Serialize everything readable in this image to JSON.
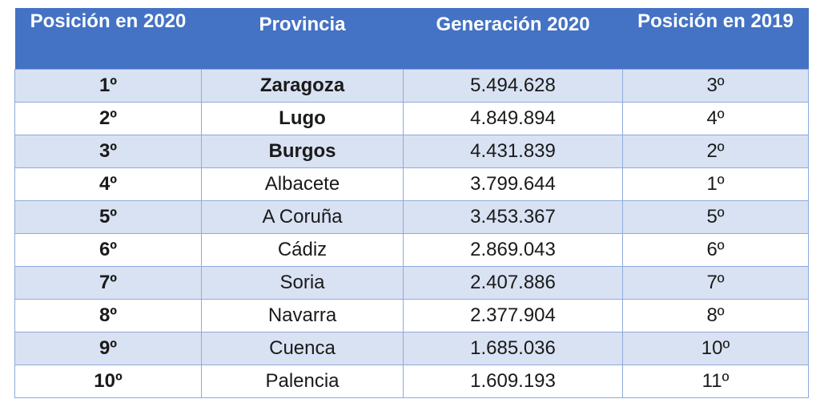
{
  "table": {
    "headers": [
      "Posición en 2020",
      "Provincia",
      "Generación 2020",
      "Posición en 2019"
    ],
    "header_color": "#4472c4",
    "stripe_color": "#d9e2f3",
    "rows": [
      {
        "rank_2020": "1º",
        "province": "Zaragoza",
        "generation_2020": "5.494.628",
        "rank_2019": "3º",
        "bold": true
      },
      {
        "rank_2020": "2º",
        "province": "Lugo",
        "generation_2020": "4.849.894",
        "rank_2019": "4º",
        "bold": true
      },
      {
        "rank_2020": "3º",
        "province": "Burgos",
        "generation_2020": "4.431.839",
        "rank_2019": "2º",
        "bold": true
      },
      {
        "rank_2020": "4º",
        "province": "Albacete",
        "generation_2020": "3.799.644",
        "rank_2019": "1º",
        "bold": false
      },
      {
        "rank_2020": "5º",
        "province": "A Coruña",
        "generation_2020": "3.453.367",
        "rank_2019": "5º",
        "bold": false
      },
      {
        "rank_2020": "6º",
        "province": "Cádiz",
        "generation_2020": "2.869.043",
        "rank_2019": "6º",
        "bold": false
      },
      {
        "rank_2020": "7º",
        "province": "Soria",
        "generation_2020": "2.407.886",
        "rank_2019": "7º",
        "bold": false
      },
      {
        "rank_2020": "8º",
        "province": "Navarra",
        "generation_2020": "2.377.904",
        "rank_2019": "8º",
        "bold": false
      },
      {
        "rank_2020": "9º",
        "province": "Cuenca",
        "generation_2020": "1.685.036",
        "rank_2019": "10º",
        "bold": false
      },
      {
        "rank_2020": "10º",
        "province": "Palencia",
        "generation_2020": "1.609.193",
        "rank_2019": "11º",
        "bold": false
      }
    ]
  }
}
